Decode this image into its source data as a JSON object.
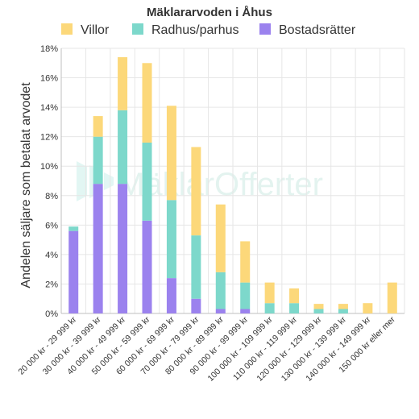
{
  "chart_data": {
    "type": "bar",
    "stacked": true,
    "title": "Mäklararvoden i Åhus",
    "ylabel": "Andelen säljare som betalat arvodet",
    "xlabel": "",
    "ylim": [
      0,
      18
    ],
    "yticks": [
      "0%",
      "2%",
      "4%",
      "6%",
      "8%",
      "10%",
      "12%",
      "14%",
      "16%",
      "18%"
    ],
    "grid": true,
    "legend": "top",
    "categories": [
      "20 000 kr - 29 999 kr",
      "30 000 kr - 39 999 kr",
      "40 000 kr - 49 999 kr",
      "50 000 kr - 59 999 kr",
      "60 000 kr - 69 999 kr",
      "70 000 kr - 79 999 kr",
      "80 000 kr - 89 999 kr",
      "90 000 kr - 99 999 kr",
      "100 000 kr - 109 999 kr",
      "110 000 kr - 119 999 kr",
      "120 000 kr - 129 999 kr",
      "130 000 kr - 139 999 kr",
      "140 000 kr - 149 999 kr",
      "150 000 kr eller mer"
    ],
    "series": [
      {
        "name": "Bostadsrätter",
        "color": "#9b82ee",
        "values": [
          5.6,
          8.8,
          8.8,
          6.3,
          2.4,
          1.0,
          0.3,
          0.3,
          0,
          0,
          0,
          0,
          0,
          0
        ]
      },
      {
        "name": "Radhus/parhus",
        "color": "#7dd8cb",
        "values": [
          0.3,
          3.2,
          5.0,
          5.3,
          5.3,
          4.3,
          2.5,
          1.8,
          0.7,
          0.7,
          0.3,
          0.3,
          0,
          0
        ]
      },
      {
        "name": "Villor",
        "color": "#fcd87a",
        "values": [
          0,
          1.4,
          3.6,
          5.4,
          6.4,
          6.0,
          4.6,
          2.8,
          1.4,
          1.0,
          0.35,
          0.35,
          0.7,
          2.1
        ]
      }
    ],
    "legend_order": [
      "Villor",
      "Radhus/parhus",
      "Bostadsrätter"
    ]
  },
  "watermark": {
    "text_part1": "Mäklar",
    "text_part2": "Offerter"
  },
  "colors": {
    "watermark": "#9ed6c8"
  },
  "icons": {
    "watermark_logo": "house-logo-icon"
  }
}
